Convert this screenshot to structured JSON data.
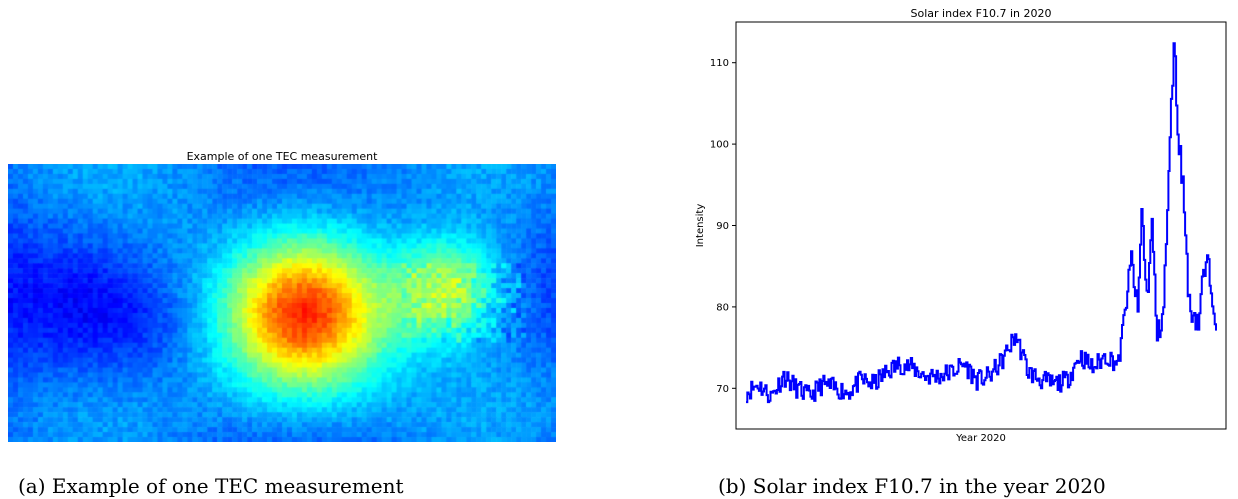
{
  "panel_a": {
    "title": "Example of one TEC measurement",
    "caption": "(a) Example of one TEC measurement"
  },
  "panel_b": {
    "caption": "(b) Solar index F10.7 in the year 2020"
  },
  "chart_data": [
    {
      "type": "heatmap",
      "title": "Example of one TEC measurement",
      "colormap": "jet",
      "grid": false,
      "axes_visible": false,
      "colors": {
        "low": "#00007f",
        "mid": "#00ffff",
        "high": "#7f0000"
      },
      "hotspots": [
        {
          "x": 0.54,
          "y": 0.53,
          "intensity": 1.0,
          "spread": 0.14
        },
        {
          "x": 0.8,
          "y": 0.45,
          "intensity": 0.45,
          "spread": 0.09
        }
      ]
    },
    {
      "type": "line",
      "title": "Solar index F10.7 in 2020",
      "xlabel": "Year 2020",
      "ylabel": "Intensity",
      "ylim": [
        65,
        115
      ],
      "yticks": [
        70,
        80,
        90,
        100,
        110
      ],
      "x_ticks_visible": false,
      "grid": false,
      "color": "#0000ff",
      "day_of_year": [
        1,
        10,
        20,
        30,
        40,
        50,
        60,
        70,
        80,
        90,
        100,
        110,
        120,
        130,
        140,
        150,
        160,
        170,
        180,
        190,
        200,
        210,
        220,
        230,
        240,
        250,
        260,
        270,
        280,
        290,
        300,
        305,
        308,
        312,
        316,
        320,
        325,
        330,
        333,
        336,
        340,
        345,
        348,
        352,
        356,
        360,
        366
      ],
      "values": [
        69.5,
        70.5,
        69,
        71.5,
        70,
        69,
        70.5,
        70,
        69.5,
        71,
        70.5,
        72,
        73,
        72.5,
        71.5,
        71.5,
        72,
        73,
        71,
        71.5,
        73.5,
        76.5,
        72,
        71,
        70.5,
        71,
        74,
        72.5,
        74,
        73,
        86,
        79,
        92,
        81,
        90,
        76,
        80,
        100,
        113,
        102,
        95,
        80,
        79.5,
        78,
        84,
        85,
        78.5
      ]
    }
  ]
}
